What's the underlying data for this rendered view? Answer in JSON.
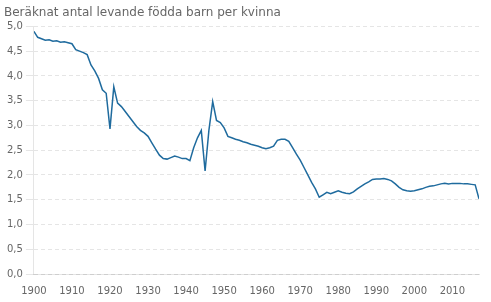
{
  "chart_data": {
    "type": "line",
    "title": "Beräknat antal levande födda barn per kvinna",
    "color": "#1f6b9e",
    "x": [
      1900,
      1901,
      1902,
      1903,
      1904,
      1905,
      1906,
      1907,
      1908,
      1909,
      1910,
      1911,
      1912,
      1913,
      1914,
      1915,
      1916,
      1917,
      1918,
      1919,
      1920,
      1921,
      1922,
      1923,
      1924,
      1925,
      1926,
      1927,
      1928,
      1929,
      1930,
      1931,
      1932,
      1933,
      1934,
      1935,
      1936,
      1937,
      1938,
      1939,
      1940,
      1941,
      1942,
      1943,
      1944,
      1945,
      1946,
      1947,
      1948,
      1949,
      1950,
      1951,
      1952,
      1953,
      1954,
      1955,
      1956,
      1957,
      1958,
      1959,
      1960,
      1961,
      1962,
      1963,
      1964,
      1965,
      1966,
      1967,
      1968,
      1969,
      1970,
      1971,
      1972,
      1973,
      1974,
      1975,
      1976,
      1977,
      1978,
      1979,
      1980,
      1981,
      1982,
      1983,
      1984,
      1985,
      1986,
      1987,
      1988,
      1989,
      1990,
      1991,
      1992,
      1993,
      1994,
      1995,
      1996,
      1997,
      1998,
      1999,
      2000,
      2001,
      2002,
      2003,
      2004,
      2005,
      2006,
      2007,
      2008,
      2009,
      2010,
      2011,
      2012,
      2013,
      2014,
      2015,
      2016,
      2017
    ],
    "values": [
      4.9,
      4.78,
      4.75,
      4.72,
      4.73,
      4.7,
      4.71,
      4.68,
      4.69,
      4.67,
      4.65,
      4.53,
      4.5,
      4.47,
      4.43,
      4.22,
      4.1,
      3.95,
      3.72,
      3.65,
      2.93,
      3.78,
      3.45,
      3.38,
      3.28,
      3.18,
      3.08,
      2.98,
      2.9,
      2.85,
      2.78,
      2.65,
      2.52,
      2.4,
      2.33,
      2.32,
      2.35,
      2.38,
      2.36,
      2.33,
      2.33,
      2.29,
      2.55,
      2.75,
      2.9,
      2.08,
      2.9,
      3.48,
      3.1,
      3.06,
      2.95,
      2.78,
      2.75,
      2.72,
      2.7,
      2.67,
      2.65,
      2.62,
      2.6,
      2.58,
      2.55,
      2.53,
      2.55,
      2.58,
      2.7,
      2.72,
      2.72,
      2.68,
      2.55,
      2.42,
      2.3,
      2.15,
      2.0,
      1.85,
      1.72,
      1.55,
      1.6,
      1.65,
      1.62,
      1.65,
      1.68,
      1.65,
      1.63,
      1.62,
      1.66,
      1.72,
      1.77,
      1.82,
      1.86,
      1.91,
      1.92,
      1.92,
      1.93,
      1.91,
      1.88,
      1.82,
      1.75,
      1.7,
      1.68,
      1.67,
      1.68,
      1.7,
      1.72,
      1.75,
      1.77,
      1.78,
      1.8,
      1.82,
      1.83,
      1.82,
      1.83,
      1.83,
      1.83,
      1.82,
      1.82,
      1.81,
      1.8,
      1.52
    ],
    "xlim": [
      1900,
      2017
    ],
    "xticks": [
      1900,
      1910,
      1920,
      1930,
      1940,
      1950,
      1960,
      1970,
      1980,
      1990,
      2000,
      2010
    ],
    "ylim": [
      0.0,
      5.0
    ],
    "yticks": [
      {
        "value": 0.0,
        "label": "0,0"
      },
      {
        "value": 0.5,
        "label": "0,5"
      },
      {
        "value": 1.0,
        "label": "1,0"
      },
      {
        "value": 1.5,
        "label": "1,5"
      },
      {
        "value": 2.0,
        "label": "2,0"
      },
      {
        "value": 2.5,
        "label": "2,5"
      },
      {
        "value": 3.0,
        "label": "3,0"
      },
      {
        "value": 3.5,
        "label": "3,5"
      },
      {
        "value": 4.0,
        "label": "4,0"
      },
      {
        "value": 4.5,
        "label": "4,5"
      },
      {
        "value": 5.0,
        "label": "5,0"
      }
    ],
    "grid": "y"
  }
}
